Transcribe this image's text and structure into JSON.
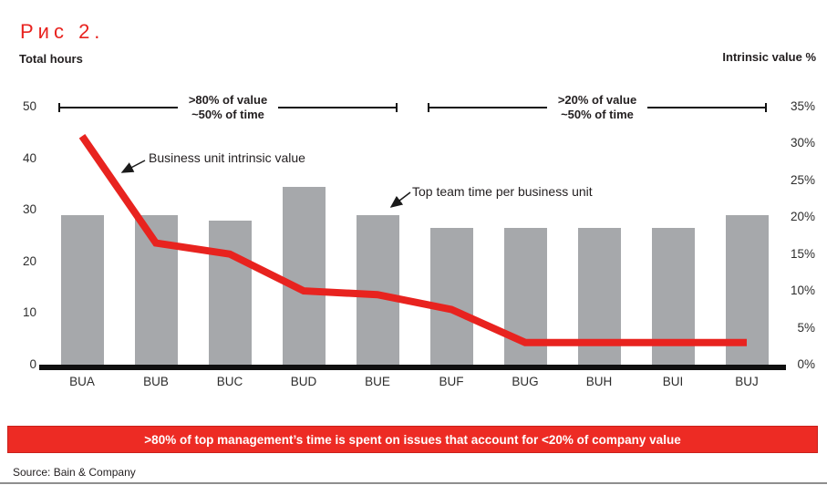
{
  "title": "Рис 2.",
  "left_axis_title": "Total hours",
  "right_axis_title": "Intrinsic value %",
  "brackets": [
    {
      "line1": ">80% of value",
      "line2": "~50% of time"
    },
    {
      "line1": ">20% of value",
      "line2": "~50% of time"
    }
  ],
  "annotations": {
    "line_label": "Business unit intrinsic value",
    "bar_label": "Top team time per business unit"
  },
  "banner": ">80% of top management’s time is spent on issues that account for <20% of company value",
  "source": "Source: Bain & Company",
  "colors": {
    "accent_red": "#e8231f",
    "banner_red": "#ed2b24",
    "bar_gray": "#a6a8ab",
    "text": "#231f20"
  },
  "chart_data": {
    "type": "bar",
    "categories": [
      "BUA",
      "BUB",
      "BUC",
      "BUD",
      "BUE",
      "BUF",
      "BUG",
      "BUH",
      "BUI",
      "BUJ"
    ],
    "series": [
      {
        "name": "Top team time per business unit",
        "type": "bar",
        "axis": "left",
        "unit": "hours",
        "values": [
          29,
          29,
          28,
          34.5,
          29,
          26.5,
          26.5,
          26.5,
          26.5,
          29
        ]
      },
      {
        "name": "Business unit intrinsic value",
        "type": "line",
        "axis": "right",
        "unit": "%",
        "values": [
          31,
          16.5,
          15,
          10,
          9.5,
          7.5,
          3,
          3,
          3,
          3
        ]
      }
    ],
    "left_axis": {
      "title": "Total hours",
      "range": [
        0,
        50
      ],
      "tick_labels": [
        "50",
        "40",
        "30",
        "20",
        "10",
        "0"
      ],
      "tick_values": [
        50,
        40,
        30,
        20,
        10,
        0
      ]
    },
    "right_axis": {
      "title": "Intrinsic value %",
      "range": [
        0,
        35
      ],
      "tick_labels": [
        "35%",
        "30%",
        "25%",
        "20%",
        "15%",
        "10%",
        "5%",
        "0%"
      ],
      "tick_values": [
        35,
        30,
        25,
        20,
        15,
        10,
        5,
        0
      ]
    },
    "grid": false,
    "legend_position": "none (arrow annotations inside plot)"
  }
}
